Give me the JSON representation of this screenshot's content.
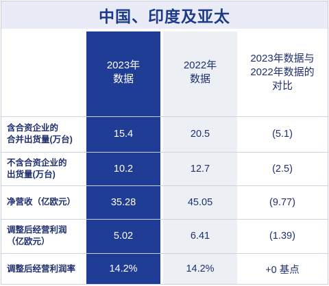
{
  "title": "中国、印度及亚太",
  "columns": [
    "2023年\n数据",
    "2022年\n数据",
    "2023年数据与\n2022年数据的\n对比"
  ],
  "rows": [
    {
      "label": "含合资企业的\n合并出货量(万台)",
      "v2023": "15.4",
      "v2022": "20.5",
      "diff": "(5.1)"
    },
    {
      "label": "不含合资企业的\n出货量(万台)",
      "v2023": "10.2",
      "v2022": "12.7",
      "diff": "(2.5)"
    },
    {
      "label": "净营收（亿欧元）",
      "v2023": "35.28",
      "v2022": "45.05",
      "diff": "(9.77)"
    },
    {
      "label": "调整后经营利润\n（亿欧元）",
      "v2023": "5.02",
      "v2022": "6.41",
      "diff": "(1.39)"
    },
    {
      "label": "调整后经营利润率",
      "v2023": "14.2%",
      "v2022": "14.2%",
      "diff": "+0 基点"
    }
  ],
  "colors": {
    "accent_dark": "#1f3d94",
    "title_bg": "#e9ecf6",
    "text": "#1f2f6e",
    "light_col": "#eceff4"
  }
}
